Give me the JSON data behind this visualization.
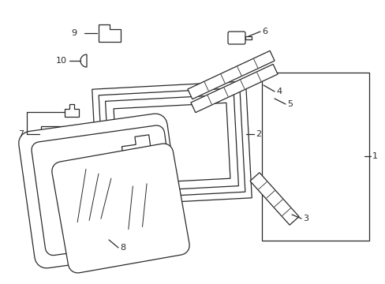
{
  "bg_color": "#ffffff",
  "line_color": "#2a2a2a",
  "line_width": 0.9,
  "figsize": [
    4.89,
    3.6
  ],
  "dpi": 100,
  "xlim": [
    0,
    489
  ],
  "ylim": [
    0,
    360
  ]
}
